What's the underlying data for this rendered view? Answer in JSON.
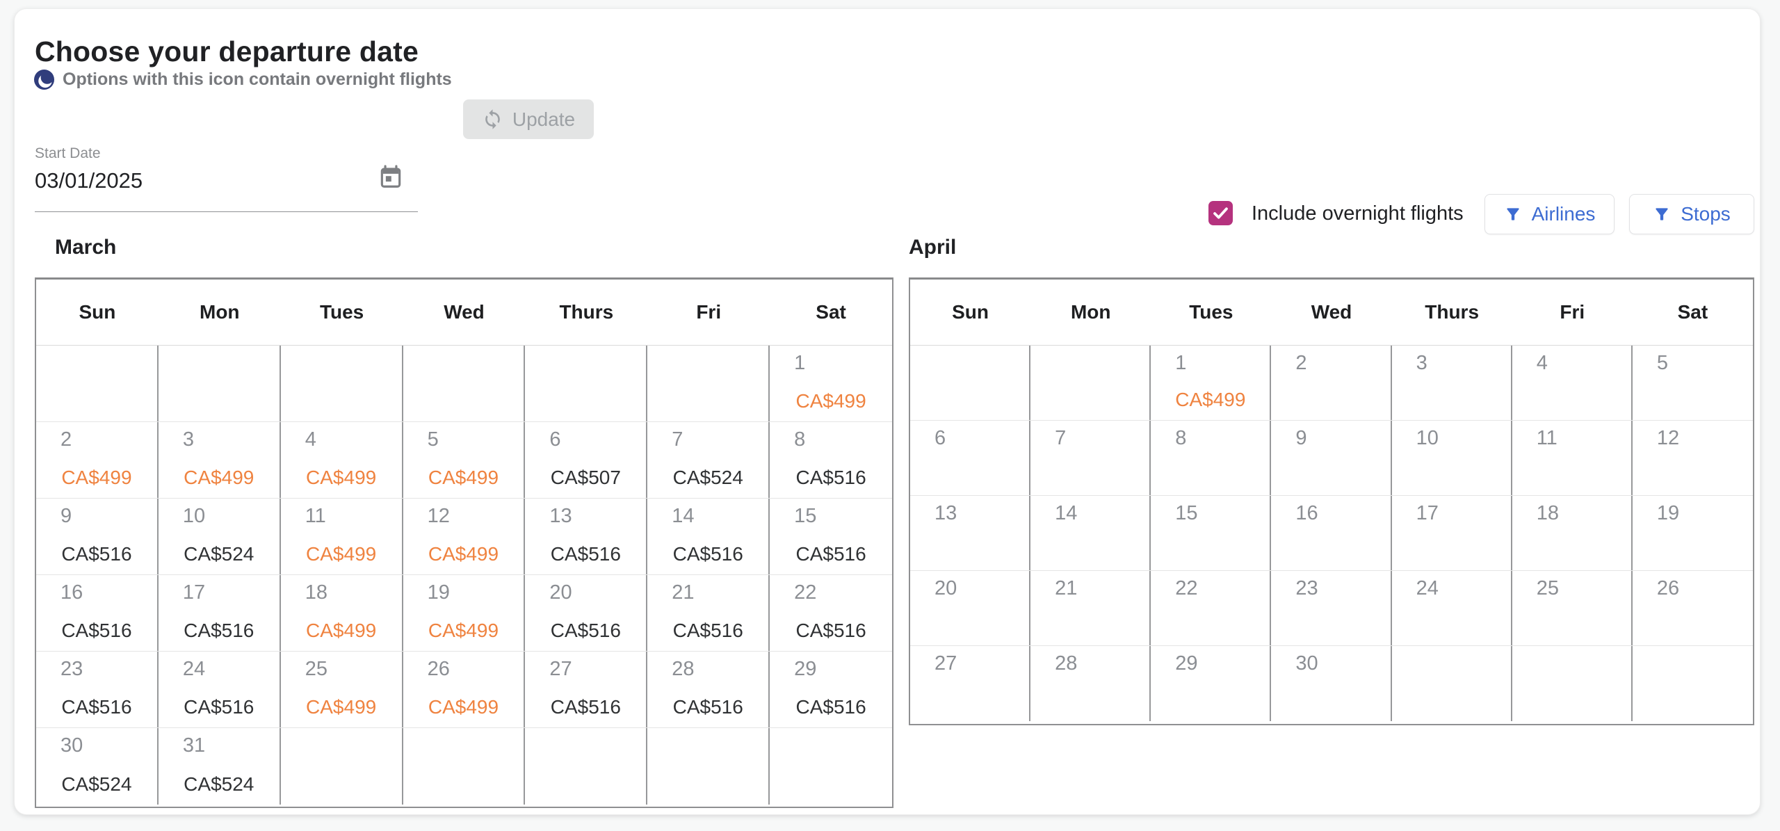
{
  "header": {
    "title": "Choose your departure date",
    "legend": "Options with this icon contain overnight flights"
  },
  "start_date": {
    "label": "Start Date",
    "value": "03/01/2025"
  },
  "update_button": {
    "label": "Update"
  },
  "filters": {
    "checkbox_label": "Include overnight flights",
    "checkbox_checked": true,
    "airlines_label": "Airlines",
    "stops_label": "Stops"
  },
  "icons": {
    "moon": "overnight-moon-icon",
    "calendar": "calendar-icon",
    "sync": "sync-icon",
    "funnel": "filter-funnel-icon",
    "check": "checkmark-icon"
  },
  "colors": {
    "price_highlight": "#ef8340",
    "price_default": "#303234",
    "checkbox_magenta": "#b5327e",
    "filter_blue": "#3d6cd2",
    "moon_navy": "#303d7c"
  },
  "day_headers": [
    "Sun",
    "Mon",
    "Tues",
    "Wed",
    "Thurs",
    "Fri",
    "Sat"
  ],
  "months": [
    {
      "name": "March",
      "weeks": [
        [
          {},
          {},
          {},
          {},
          {},
          {},
          {
            "day": "1",
            "price": "CA$499",
            "highlight": true
          }
        ],
        [
          {
            "day": "2",
            "price": "CA$499",
            "highlight": true
          },
          {
            "day": "3",
            "price": "CA$499",
            "highlight": true
          },
          {
            "day": "4",
            "price": "CA$499",
            "highlight": true
          },
          {
            "day": "5",
            "price": "CA$499",
            "highlight": true
          },
          {
            "day": "6",
            "price": "CA$507"
          },
          {
            "day": "7",
            "price": "CA$524"
          },
          {
            "day": "8",
            "price": "CA$516"
          }
        ],
        [
          {
            "day": "9",
            "price": "CA$516"
          },
          {
            "day": "10",
            "price": "CA$524"
          },
          {
            "day": "11",
            "price": "CA$499",
            "highlight": true
          },
          {
            "day": "12",
            "price": "CA$499",
            "highlight": true
          },
          {
            "day": "13",
            "price": "CA$516"
          },
          {
            "day": "14",
            "price": "CA$516"
          },
          {
            "day": "15",
            "price": "CA$516"
          }
        ],
        [
          {
            "day": "16",
            "price": "CA$516"
          },
          {
            "day": "17",
            "price": "CA$516"
          },
          {
            "day": "18",
            "price": "CA$499",
            "highlight": true
          },
          {
            "day": "19",
            "price": "CA$499",
            "highlight": true
          },
          {
            "day": "20",
            "price": "CA$516"
          },
          {
            "day": "21",
            "price": "CA$516"
          },
          {
            "day": "22",
            "price": "CA$516"
          }
        ],
        [
          {
            "day": "23",
            "price": "CA$516"
          },
          {
            "day": "24",
            "price": "CA$516"
          },
          {
            "day": "25",
            "price": "CA$499",
            "highlight": true
          },
          {
            "day": "26",
            "price": "CA$499",
            "highlight": true
          },
          {
            "day": "27",
            "price": "CA$516"
          },
          {
            "day": "28",
            "price": "CA$516"
          },
          {
            "day": "29",
            "price": "CA$516"
          }
        ],
        [
          {
            "day": "30",
            "price": "CA$524"
          },
          {
            "day": "31",
            "price": "CA$524"
          },
          {},
          {},
          {},
          {},
          {}
        ]
      ]
    },
    {
      "name": "April",
      "weeks": [
        [
          {},
          {},
          {
            "day": "1",
            "price": "CA$499",
            "highlight": true
          },
          {
            "day": "2"
          },
          {
            "day": "3"
          },
          {
            "day": "4"
          },
          {
            "day": "5"
          }
        ],
        [
          {
            "day": "6"
          },
          {
            "day": "7"
          },
          {
            "day": "8"
          },
          {
            "day": "9"
          },
          {
            "day": "10"
          },
          {
            "day": "11"
          },
          {
            "day": "12"
          }
        ],
        [
          {
            "day": "13"
          },
          {
            "day": "14"
          },
          {
            "day": "15"
          },
          {
            "day": "16"
          },
          {
            "day": "17"
          },
          {
            "day": "18"
          },
          {
            "day": "19"
          }
        ],
        [
          {
            "day": "20"
          },
          {
            "day": "21"
          },
          {
            "day": "22"
          },
          {
            "day": "23"
          },
          {
            "day": "24"
          },
          {
            "day": "25"
          },
          {
            "day": "26"
          }
        ],
        [
          {
            "day": "27"
          },
          {
            "day": "28"
          },
          {
            "day": "29"
          },
          {
            "day": "30"
          },
          {},
          {},
          {}
        ]
      ]
    }
  ]
}
